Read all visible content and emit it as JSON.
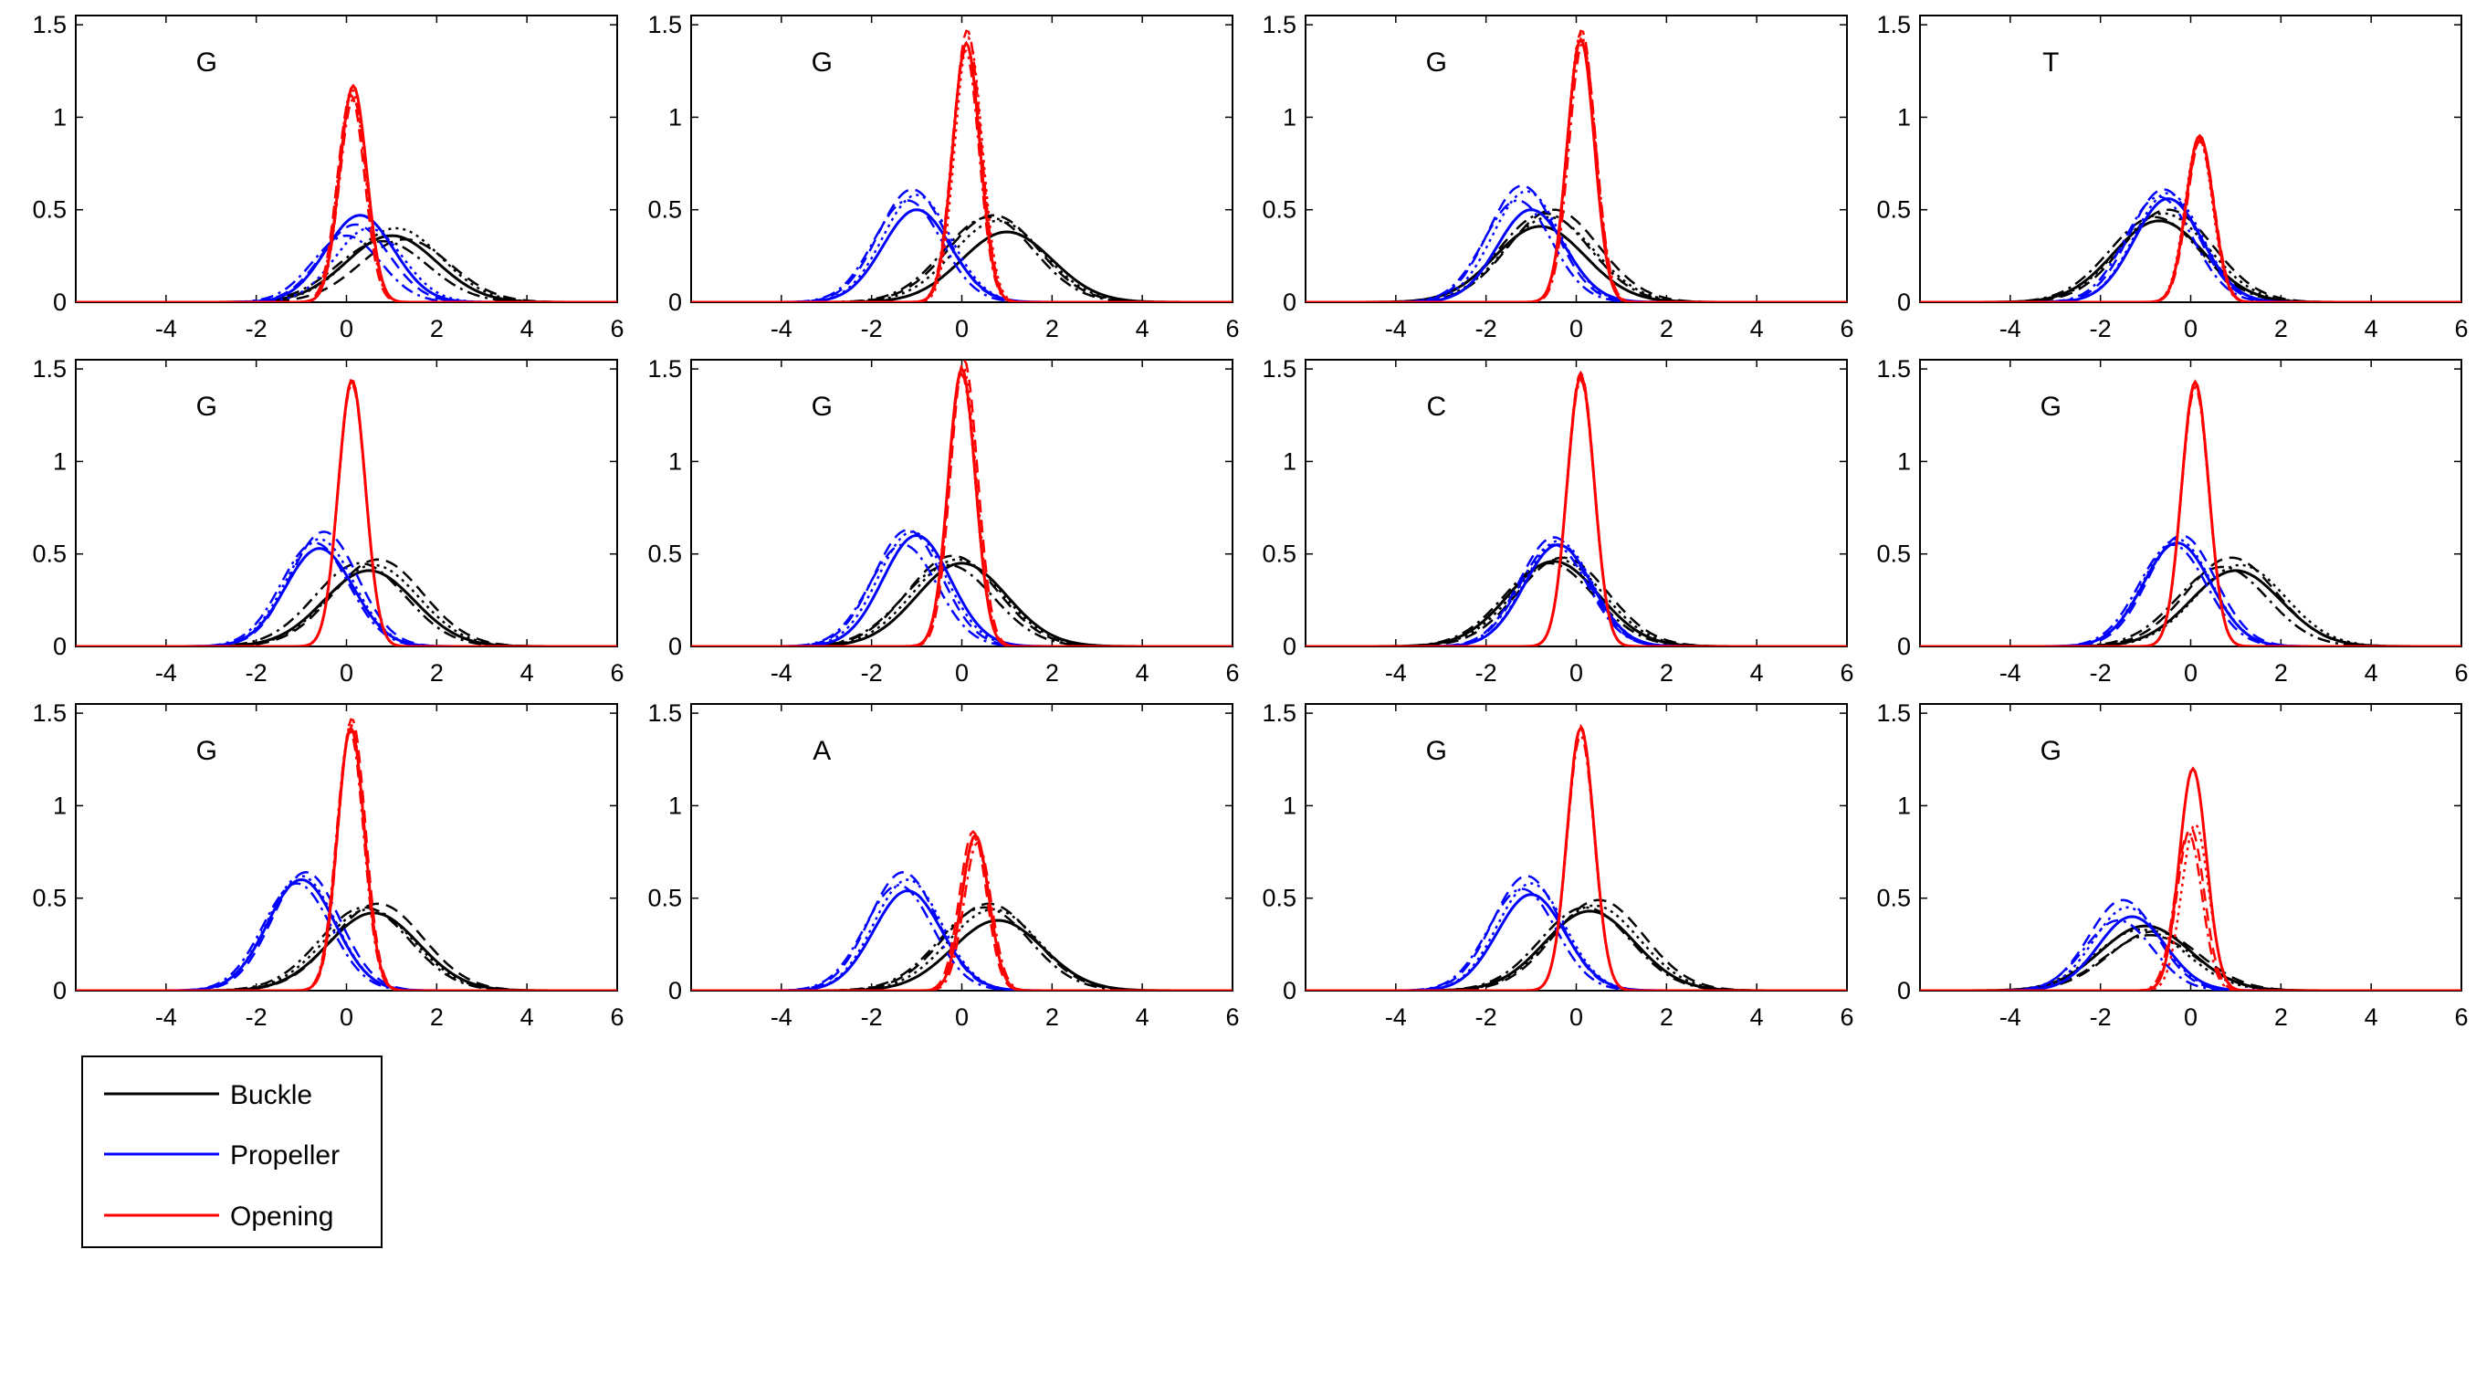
{
  "chart_data": {
    "type": "line",
    "layout": {
      "rows": 3,
      "cols": 4
    },
    "xlim": [
      -6,
      6
    ],
    "ylim": [
      0,
      1.55
    ],
    "xticks": [
      -4,
      -2,
      0,
      2,
      4,
      6
    ],
    "yticks": [
      0,
      0.5,
      1,
      1.5
    ],
    "xtick_labels": [
      "-4",
      "-2",
      "0",
      "2",
      "4",
      "6"
    ],
    "ytick_labels": [
      "0",
      "0.5",
      "1",
      "1.5"
    ],
    "grid": false,
    "legend": {
      "placement": "below-left",
      "entries": [
        {
          "label": "Buckle",
          "color": "#000000"
        },
        {
          "label": "Propeller",
          "color": "#0000ff"
        },
        {
          "label": "Opening",
          "color": "#ff0000"
        }
      ]
    },
    "colors": {
      "Buckle": "#000000",
      "Propeller": "#0000ff",
      "Opening": "#ff0000"
    },
    "line_styles": [
      "solid",
      "dashed",
      "dotted",
      "dashdot"
    ],
    "curve_shape": "gaussian",
    "panels": [
      {
        "label": "G",
        "series": {
          "Buckle": [
            {
              "mu": 1.0,
              "peak": 0.36
            },
            {
              "mu": 1.3,
              "peak": 0.34
            },
            {
              "mu": 1.1,
              "peak": 0.4
            },
            {
              "mu": 0.8,
              "peak": 0.33
            }
          ],
          "Propeller": [
            {
              "mu": 0.3,
              "peak": 0.47
            },
            {
              "mu": 0.2,
              "peak": 0.42
            },
            {
              "mu": 0.5,
              "peak": 0.4
            },
            {
              "mu": 0.0,
              "peak": 0.36
            }
          ],
          "Opening": [
            {
              "mu": 0.15,
              "peak": 1.17
            },
            {
              "mu": 0.1,
              "peak": 1.12
            },
            {
              "mu": 0.12,
              "peak": 1.15
            },
            {
              "mu": 0.15,
              "peak": 1.1
            }
          ]
        }
      },
      {
        "label": "G",
        "series": {
          "Buckle": [
            {
              "mu": 1.0,
              "peak": 0.38
            },
            {
              "mu": 0.7,
              "peak": 0.47
            },
            {
              "mu": 0.8,
              "peak": 0.44
            },
            {
              "mu": 0.6,
              "peak": 0.46
            }
          ],
          "Propeller": [
            {
              "mu": -1.0,
              "peak": 0.5
            },
            {
              "mu": -1.1,
              "peak": 0.61
            },
            {
              "mu": -1.0,
              "peak": 0.58
            },
            {
              "mu": -1.2,
              "peak": 0.55
            }
          ],
          "Opening": [
            {
              "mu": 0.1,
              "peak": 1.4
            },
            {
              "mu": 0.12,
              "peak": 1.47
            },
            {
              "mu": 0.15,
              "peak": 1.43
            },
            {
              "mu": 0.08,
              "peak": 1.36
            }
          ]
        }
      },
      {
        "label": "G",
        "series": {
          "Buckle": [
            {
              "mu": -0.8,
              "peak": 0.41
            },
            {
              "mu": -0.5,
              "peak": 0.5
            },
            {
              "mu": -0.6,
              "peak": 0.46
            },
            {
              "mu": -0.7,
              "peak": 0.48
            }
          ],
          "Propeller": [
            {
              "mu": -1.0,
              "peak": 0.5
            },
            {
              "mu": -1.2,
              "peak": 0.63
            },
            {
              "mu": -1.1,
              "peak": 0.6
            },
            {
              "mu": -1.3,
              "peak": 0.55
            }
          ],
          "Opening": [
            {
              "mu": 0.1,
              "peak": 1.42
            },
            {
              "mu": 0.12,
              "peak": 1.47
            },
            {
              "mu": 0.1,
              "peak": 1.45
            },
            {
              "mu": 0.14,
              "peak": 1.4
            }
          ]
        }
      },
      {
        "label": "T",
        "series": {
          "Buckle": [
            {
              "mu": -0.7,
              "peak": 0.44
            },
            {
              "mu": -0.5,
              "peak": 0.5
            },
            {
              "mu": -0.6,
              "peak": 0.48
            },
            {
              "mu": -0.8,
              "peak": 0.46
            }
          ],
          "Propeller": [
            {
              "mu": -0.5,
              "peak": 0.56
            },
            {
              "mu": -0.6,
              "peak": 0.61
            },
            {
              "mu": -0.5,
              "peak": 0.59
            },
            {
              "mu": -0.7,
              "peak": 0.57
            }
          ],
          "Opening": [
            {
              "mu": 0.2,
              "peak": 0.9
            },
            {
              "mu": 0.22,
              "peak": 0.88
            },
            {
              "mu": 0.18,
              "peak": 0.89
            },
            {
              "mu": 0.2,
              "peak": 0.87
            }
          ]
        }
      },
      {
        "label": "G",
        "series": {
          "Buckle": [
            {
              "mu": 0.5,
              "peak": 0.41
            },
            {
              "mu": 0.7,
              "peak": 0.47
            },
            {
              "mu": 0.6,
              "peak": 0.44
            },
            {
              "mu": 0.3,
              "peak": 0.45
            }
          ],
          "Propeller": [
            {
              "mu": -0.6,
              "peak": 0.53
            },
            {
              "mu": -0.5,
              "peak": 0.62
            },
            {
              "mu": -0.6,
              "peak": 0.58
            },
            {
              "mu": -0.7,
              "peak": 0.56
            }
          ],
          "Opening": [
            {
              "mu": 0.12,
              "peak": 1.44
            },
            {
              "mu": 0.12,
              "peak": 1.43
            },
            {
              "mu": 0.12,
              "peak": 1.44
            },
            {
              "mu": 0.12,
              "peak": 1.42
            }
          ]
        }
      },
      {
        "label": "G",
        "series": {
          "Buckle": [
            {
              "mu": 0.0,
              "peak": 0.45
            },
            {
              "mu": -0.2,
              "peak": 0.49
            },
            {
              "mu": -0.1,
              "peak": 0.47
            },
            {
              "mu": -0.3,
              "peak": 0.44
            }
          ],
          "Propeller": [
            {
              "mu": -1.0,
              "peak": 0.6
            },
            {
              "mu": -1.2,
              "peak": 0.63
            },
            {
              "mu": -1.1,
              "peak": 0.62
            },
            {
              "mu": -1.3,
              "peak": 0.55
            }
          ],
          "Opening": [
            {
              "mu": 0.0,
              "peak": 1.5
            },
            {
              "mu": 0.05,
              "peak": 1.55
            },
            {
              "mu": 0.02,
              "peak": 1.52
            },
            {
              "mu": 0.0,
              "peak": 1.47
            }
          ]
        }
      },
      {
        "label": "C",
        "series": {
          "Buckle": [
            {
              "mu": -0.5,
              "peak": 0.46
            },
            {
              "mu": -0.3,
              "peak": 0.48
            },
            {
              "mu": -0.4,
              "peak": 0.47
            },
            {
              "mu": -0.6,
              "peak": 0.45
            }
          ],
          "Propeller": [
            {
              "mu": -0.4,
              "peak": 0.55
            },
            {
              "mu": -0.5,
              "peak": 0.59
            },
            {
              "mu": -0.4,
              "peak": 0.57
            },
            {
              "mu": -0.5,
              "peak": 0.55
            }
          ],
          "Opening": [
            {
              "mu": 0.1,
              "peak": 1.46
            },
            {
              "mu": 0.1,
              "peak": 1.48
            },
            {
              "mu": 0.1,
              "peak": 1.47
            },
            {
              "mu": 0.1,
              "peak": 1.44
            }
          ]
        }
      },
      {
        "label": "G",
        "series": {
          "Buckle": [
            {
              "mu": 1.0,
              "peak": 0.41
            },
            {
              "mu": 0.9,
              "peak": 0.48
            },
            {
              "mu": 1.1,
              "peak": 0.44
            },
            {
              "mu": 0.7,
              "peak": 0.43
            }
          ],
          "Propeller": [
            {
              "mu": -0.3,
              "peak": 0.56
            },
            {
              "mu": -0.2,
              "peak": 0.6
            },
            {
              "mu": -0.3,
              "peak": 0.58
            },
            {
              "mu": -0.4,
              "peak": 0.55
            }
          ],
          "Opening": [
            {
              "mu": 0.1,
              "peak": 1.43
            },
            {
              "mu": 0.1,
              "peak": 1.42
            },
            {
              "mu": 0.1,
              "peak": 1.43
            },
            {
              "mu": 0.1,
              "peak": 1.4
            }
          ]
        }
      },
      {
        "label": "G",
        "series": {
          "Buckle": [
            {
              "mu": 0.6,
              "peak": 0.42
            },
            {
              "mu": 0.7,
              "peak": 0.47
            },
            {
              "mu": 0.5,
              "peak": 0.44
            },
            {
              "mu": 0.4,
              "peak": 0.45
            }
          ],
          "Propeller": [
            {
              "mu": -1.0,
              "peak": 0.6
            },
            {
              "mu": -0.9,
              "peak": 0.64
            },
            {
              "mu": -1.0,
              "peak": 0.62
            },
            {
              "mu": -1.1,
              "peak": 0.58
            }
          ],
          "Opening": [
            {
              "mu": 0.1,
              "peak": 1.42
            },
            {
              "mu": 0.12,
              "peak": 1.47
            },
            {
              "mu": 0.1,
              "peak": 1.44
            },
            {
              "mu": 0.08,
              "peak": 1.4
            }
          ]
        }
      },
      {
        "label": "A",
        "series": {
          "Buckle": [
            {
              "mu": 0.8,
              "peak": 0.38
            },
            {
              "mu": 0.6,
              "peak": 0.47
            },
            {
              "mu": 0.7,
              "peak": 0.44
            },
            {
              "mu": 0.5,
              "peak": 0.45
            }
          ],
          "Propeller": [
            {
              "mu": -1.2,
              "peak": 0.54
            },
            {
              "mu": -1.3,
              "peak": 0.64
            },
            {
              "mu": -1.2,
              "peak": 0.6
            },
            {
              "mu": -1.4,
              "peak": 0.57
            }
          ],
          "Opening": [
            {
              "mu": 0.3,
              "peak": 0.84
            },
            {
              "mu": 0.25,
              "peak": 0.86
            },
            {
              "mu": 0.3,
              "peak": 0.82
            },
            {
              "mu": 0.35,
              "peak": 0.8
            }
          ]
        }
      },
      {
        "label": "G",
        "series": {
          "Buckle": [
            {
              "mu": 0.3,
              "peak": 0.43
            },
            {
              "mu": 0.5,
              "peak": 0.49
            },
            {
              "mu": 0.4,
              "peak": 0.46
            },
            {
              "mu": 0.2,
              "peak": 0.45
            }
          ],
          "Propeller": [
            {
              "mu": -1.0,
              "peak": 0.52
            },
            {
              "mu": -1.1,
              "peak": 0.62
            },
            {
              "mu": -1.0,
              "peak": 0.58
            },
            {
              "mu": -1.2,
              "peak": 0.55
            }
          ],
          "Opening": [
            {
              "mu": 0.1,
              "peak": 1.42
            },
            {
              "mu": 0.1,
              "peak": 1.43
            },
            {
              "mu": 0.1,
              "peak": 1.42
            },
            {
              "mu": 0.1,
              "peak": 1.38
            }
          ]
        }
      },
      {
        "label": "G",
        "series": {
          "Buckle": [
            {
              "mu": -1.0,
              "peak": 0.35
            },
            {
              "mu": -0.8,
              "peak": 0.32
            },
            {
              "mu": -1.1,
              "peak": 0.33
            },
            {
              "mu": -0.9,
              "peak": 0.3
            }
          ],
          "Propeller": [
            {
              "mu": -1.3,
              "peak": 0.4
            },
            {
              "mu": -1.5,
              "peak": 0.49
            },
            {
              "mu": -1.4,
              "peak": 0.45
            },
            {
              "mu": -1.6,
              "peak": 0.38
            }
          ],
          "Opening": [
            {
              "mu": 0.05,
              "peak": 1.2
            },
            {
              "mu": 0.0,
              "peak": 0.88
            },
            {
              "mu": 0.1,
              "peak": 0.9
            },
            {
              "mu": -0.05,
              "peak": 0.85
            }
          ]
        }
      }
    ]
  }
}
